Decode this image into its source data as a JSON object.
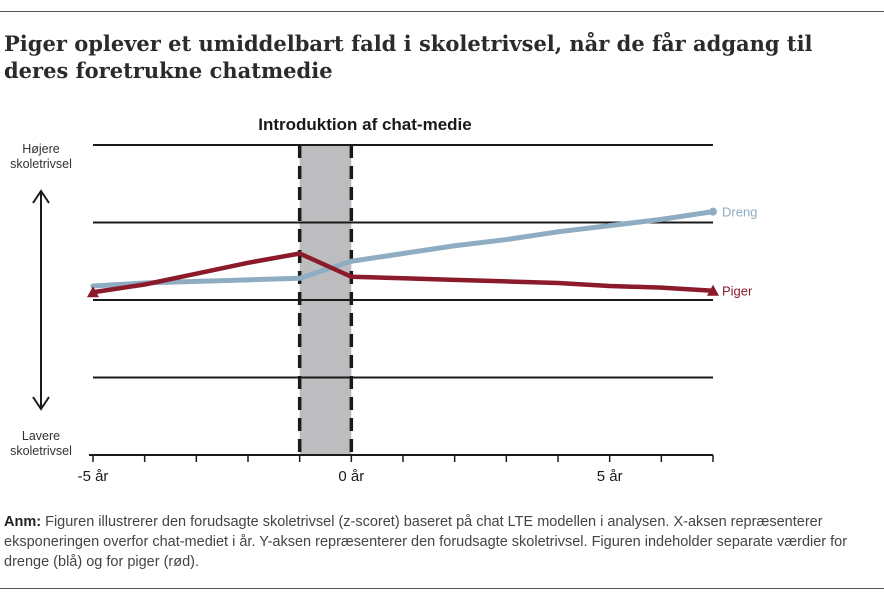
{
  "title": "Piger oplever et umiddelbart fald i skoletrivsel, når de får adgang til deres foretrukne chatmedie",
  "note": {
    "label": "Anm:",
    "text": " Figuren illustrerer den forudsagte skoletrivsel (z-scoret) baseret på chat LTE modellen i analysen. X-aksen repræsenterer eksponeringen overfor chat-mediet i år. Y-aksen repræsenterer den forudsagte skoletrivsel. Figuren indeholder separate værdier for drenge (blå) og for piger (rød)."
  },
  "chart_data": {
    "type": "line",
    "title": "Introduktion af chat-medie",
    "ylabel_top": "Højere skoletrivsel",
    "ylabel_bottom": "Lavere skoletrivsel",
    "x_ticks": [
      {
        "value": -5,
        "label": "-5 år"
      },
      {
        "value": 0,
        "label": "0 år"
      },
      {
        "value": 5,
        "label": "5 år"
      }
    ],
    "xlim": [
      -5,
      7
    ],
    "ylim": [
      -1,
      1
    ],
    "gridlines_y": [
      -0.5,
      0,
      0.5,
      1
    ],
    "shaded_region": {
      "x": [
        -1,
        0
      ]
    },
    "grid": true,
    "series": [
      {
        "name": "Dreng",
        "color": "#8fadc2",
        "x": [
          -5,
          -4,
          -3,
          -2,
          -1,
          0,
          1,
          2,
          3,
          4,
          5,
          6,
          7
        ],
        "y": [
          0.09,
          0.11,
          0.12,
          0.13,
          0.14,
          0.25,
          0.3,
          0.35,
          0.39,
          0.44,
          0.48,
          0.52,
          0.57
        ]
      },
      {
        "name": "Piger",
        "color": "#8b1a2b",
        "x": [
          -5,
          -4,
          -3,
          -2,
          -1,
          0,
          1,
          2,
          3,
          4,
          5,
          6,
          7
        ],
        "y": [
          0.05,
          0.1,
          0.17,
          0.24,
          0.3,
          0.15,
          0.14,
          0.13,
          0.12,
          0.11,
          0.09,
          0.08,
          0.06
        ]
      }
    ]
  }
}
